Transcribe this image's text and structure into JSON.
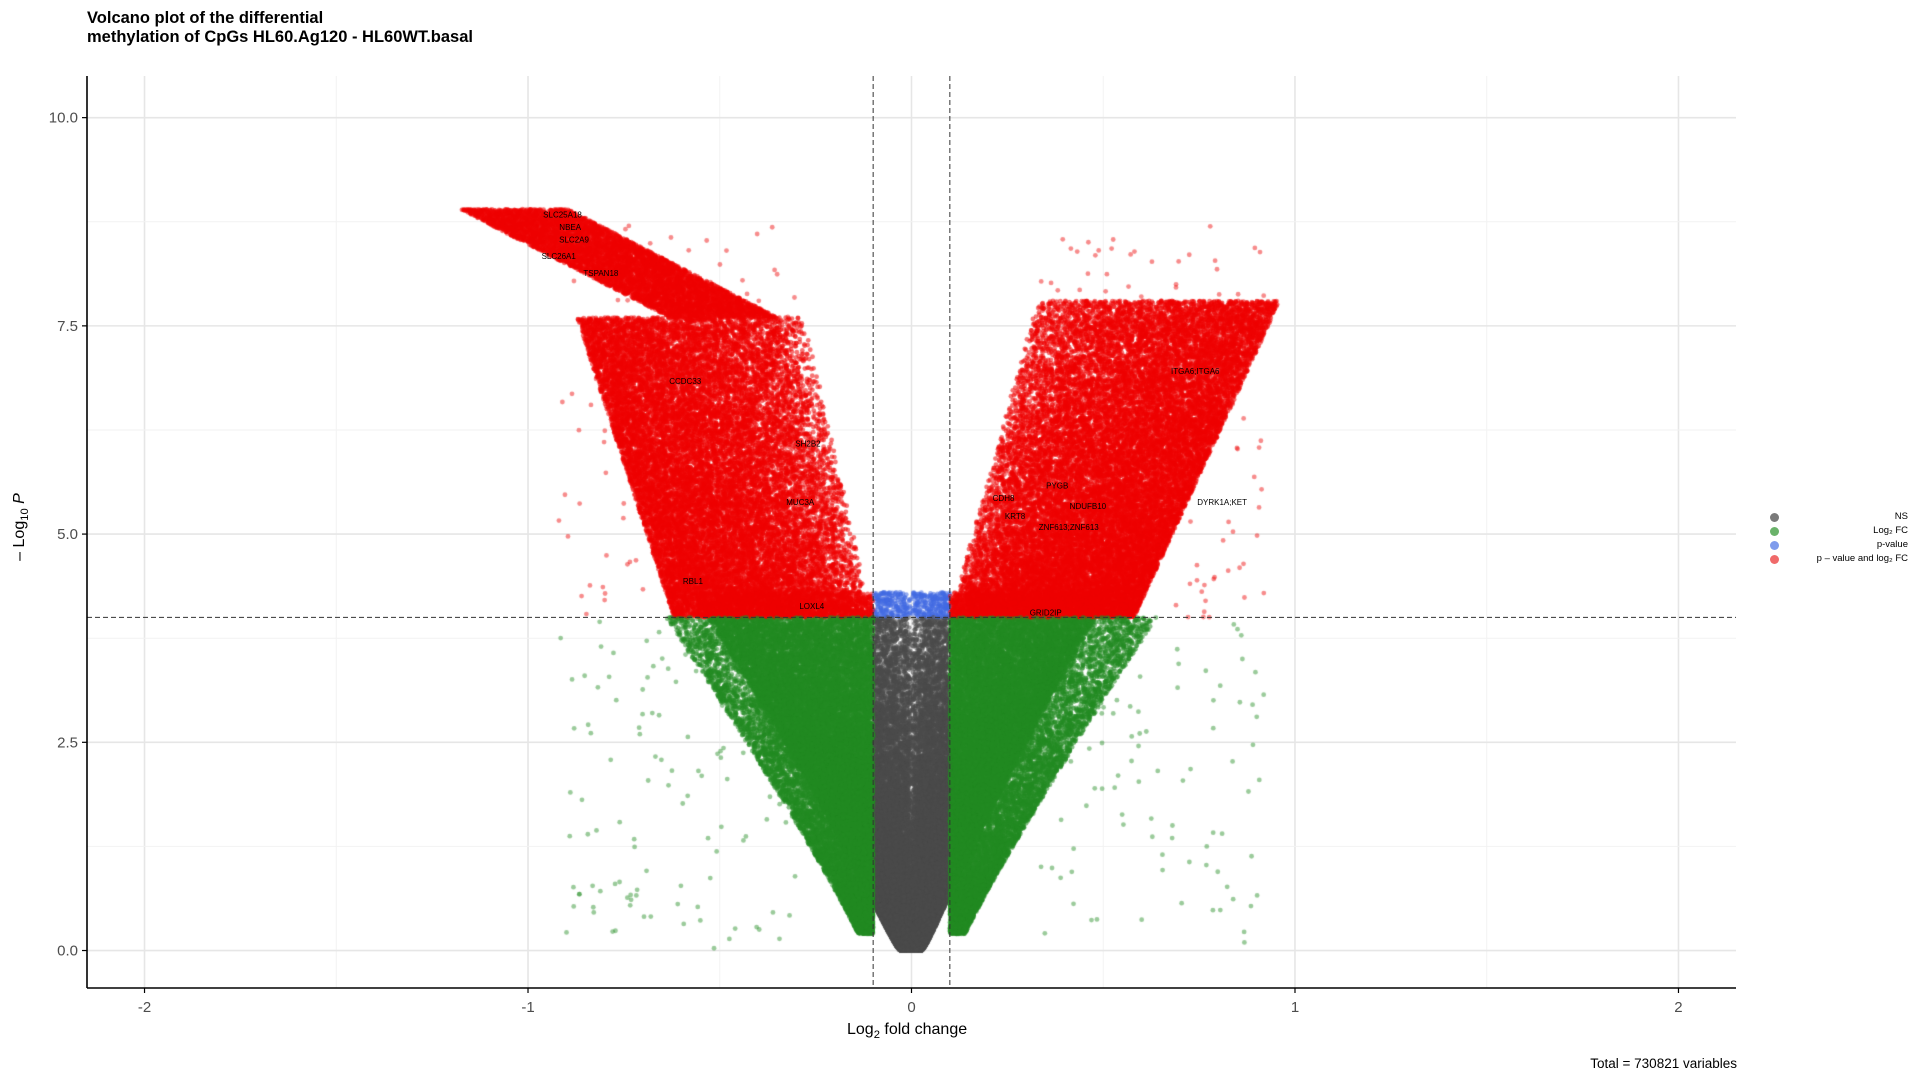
{
  "chart_data": {
    "type": "scatter",
    "title_line1": "Volcano plot of the differential",
    "title_line2": "methylation of CpGs HL60.Ag120 - HL60WT.basal",
    "xlabel_prefix": "Log",
    "xlabel_sub": "2",
    "xlabel_suffix": " fold change",
    "ylabel_prefix": "– Log",
    "ylabel_sub": "10",
    "ylabel_suffix": " P",
    "caption": "Total = 730821 variables",
    "xlim": [
      -2.15,
      2.15
    ],
    "ylim": [
      -0.45,
      10.5
    ],
    "x_ticks": [
      -2,
      -1,
      0,
      1,
      2
    ],
    "x_tick_labels": [
      "-2",
      "-1",
      "0",
      "1",
      "2"
    ],
    "y_ticks": [
      0,
      2.5,
      5,
      7.5,
      10
    ],
    "y_tick_labels": [
      "0.0",
      "2.5",
      "5.0",
      "7.5",
      "10.0"
    ],
    "grid": true,
    "fc_cutoff": 0.1,
    "p_cutoff": 4,
    "legend_position": "right",
    "colors": {
      "ns": "#4a4a4a",
      "fc": "#228b22",
      "p": "#4169e1",
      "both": "#ee0000"
    },
    "series": [
      {
        "name": "NS",
        "key": "ns"
      },
      {
        "name": "Log₂ FC",
        "key": "fc"
      },
      {
        "name": "p-value",
        "key": "p"
      },
      {
        "name": "p – value  and  log₂ FC",
        "key": "both"
      }
    ],
    "labels": [
      {
        "text": "SLC25A18",
        "x": -0.91,
        "y": 8.8
      },
      {
        "text": "NBEA",
        "x": -0.89,
        "y": 8.65
      },
      {
        "text": "SLC2A9",
        "x": -0.88,
        "y": 8.5
      },
      {
        "text": "SLC26A1",
        "x": -0.92,
        "y": 8.3
      },
      {
        "text": "TSPAN18",
        "x": -0.81,
        "y": 8.1
      },
      {
        "text": "CCDC33",
        "x": -0.59,
        "y": 6.8
      },
      {
        "text": "SH2B2",
        "x": -0.27,
        "y": 6.05
      },
      {
        "text": "MUC3A",
        "x": -0.29,
        "y": 5.35
      },
      {
        "text": "RBL1",
        "x": -0.57,
        "y": 4.4
      },
      {
        "text": "LOXL4",
        "x": -0.26,
        "y": 4.1
      },
      {
        "text": "CDH8",
        "x": 0.24,
        "y": 5.4
      },
      {
        "text": "PYGB",
        "x": 0.38,
        "y": 5.55
      },
      {
        "text": "NDUFB10",
        "x": 0.46,
        "y": 5.3
      },
      {
        "text": "KRT8",
        "x": 0.27,
        "y": 5.18
      },
      {
        "text": "ZNF613;ZNF613",
        "x": 0.41,
        "y": 5.05
      },
      {
        "text": "ITGA6;ITGA6",
        "x": 0.74,
        "y": 6.92
      },
      {
        "text": "DYRK1A;KET",
        "x": 0.81,
        "y": 5.35
      },
      {
        "text": "GRID2IP",
        "x": 0.35,
        "y": 4.02
      }
    ]
  }
}
